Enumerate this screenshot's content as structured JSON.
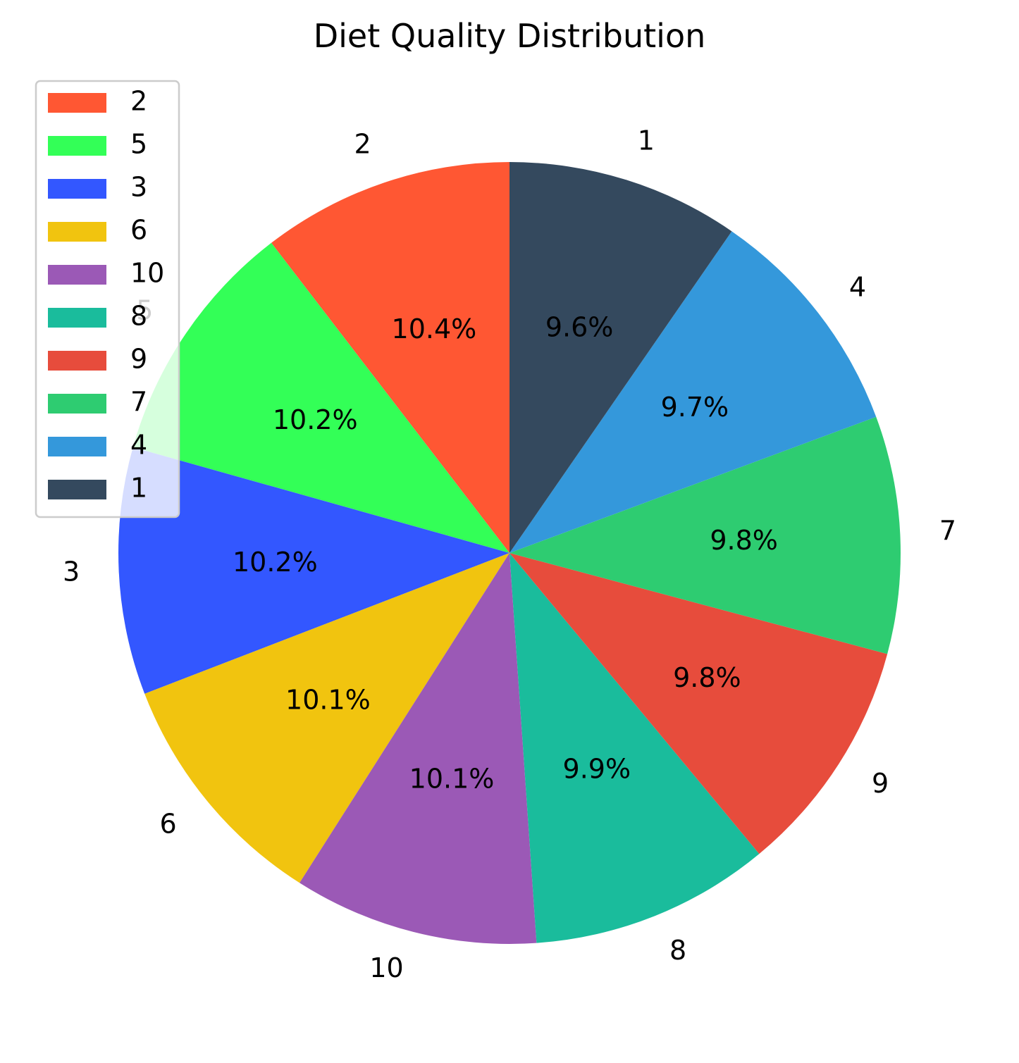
{
  "chart_data": {
    "type": "pie",
    "title": "Diet Quality Distribution",
    "start_angle_deg": 90,
    "direction": "counterclockwise",
    "slices": [
      {
        "label": "2",
        "value": 10.4,
        "pct_label": "10.4%",
        "color": "#FF5733"
      },
      {
        "label": "5",
        "value": 10.2,
        "pct_label": "10.2%",
        "color": "#33FF57"
      },
      {
        "label": "3",
        "value": 10.2,
        "pct_label": "10.2%",
        "color": "#3357FF"
      },
      {
        "label": "6",
        "value": 10.1,
        "pct_label": "10.1%",
        "color": "#F1C40F"
      },
      {
        "label": "10",
        "value": 10.1,
        "pct_label": "10.1%",
        "color": "#9B59B6"
      },
      {
        "label": "8",
        "value": 9.9,
        "pct_label": "9.9%",
        "color": "#1ABC9C"
      },
      {
        "label": "9",
        "value": 9.8,
        "pct_label": "9.8%",
        "color": "#E74C3C"
      },
      {
        "label": "7",
        "value": 9.8,
        "pct_label": "9.8%",
        "color": "#2ECC71"
      },
      {
        "label": "4",
        "value": 9.7,
        "pct_label": "9.7%",
        "color": "#3498DB"
      },
      {
        "label": "1",
        "value": 9.6,
        "pct_label": "9.6%",
        "color": "#34495E"
      }
    ],
    "legend": {
      "position": "upper-left",
      "entries": [
        "2",
        "5",
        "3",
        "6",
        "10",
        "8",
        "9",
        "7",
        "4",
        "1"
      ]
    }
  }
}
